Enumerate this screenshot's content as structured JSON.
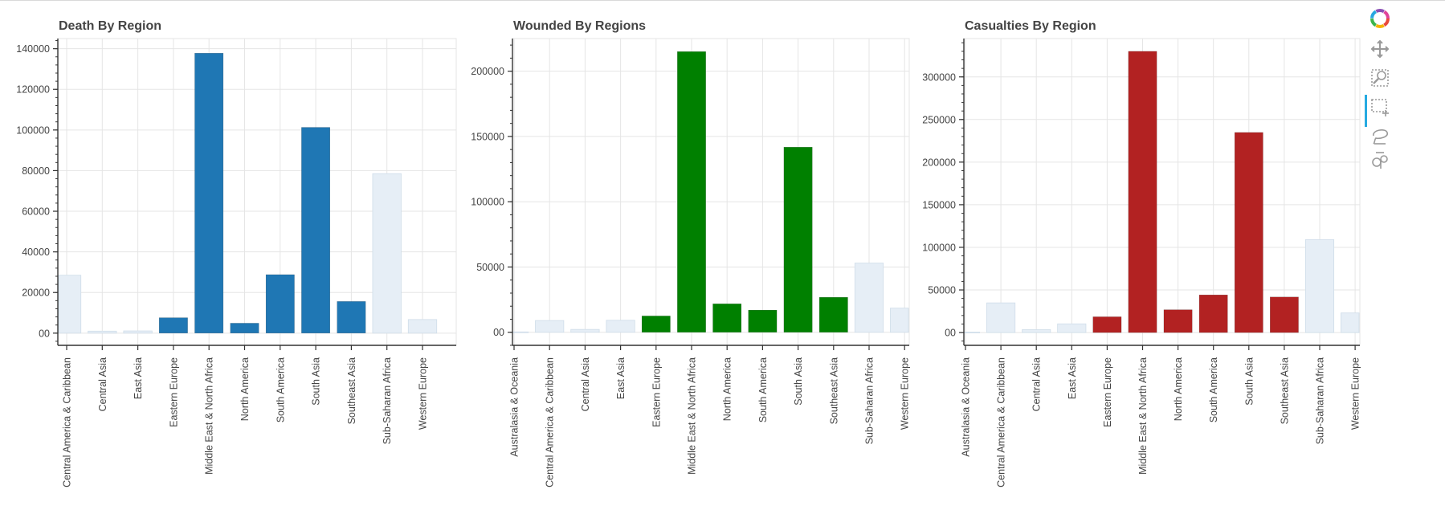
{
  "chart_data": [
    {
      "type": "bar",
      "title": "Death By Region",
      "color": "#1f77b4",
      "muted_color": "#e6eef6",
      "categories": [
        "Central America & Caribbean",
        "Central Asia",
        "East Asia",
        "Eastern Europe",
        "Middle East & North Africa",
        "North America",
        "South America",
        "South Asia",
        "Southeast Asia",
        "Sub-Saharan Africa",
        "Western Europe"
      ],
      "values": [
        28500,
        1000,
        1100,
        7600,
        137800,
        4900,
        28800,
        101300,
        15600,
        78500,
        6700
      ],
      "selected": [
        false,
        false,
        false,
        true,
        true,
        true,
        true,
        true,
        true,
        false,
        false
      ],
      "yticks": [
        0,
        20000,
        40000,
        60000,
        80000,
        100000,
        120000,
        140000
      ],
      "ytick_labels": [
        "00",
        "20000",
        "40000",
        "60000",
        "80000",
        "100000",
        "120000",
        "140000"
      ],
      "ylim": [
        -6000,
        145000
      ],
      "grid": true
    },
    {
      "type": "bar",
      "title": "Wounded By Regions",
      "color": "#008000",
      "muted_color": "#e6eef6",
      "categories": [
        "Australasia & Oceania",
        "Central America & Caribbean",
        "Central Asia",
        "East Asia",
        "Eastern Europe",
        "Middle East & North Africa",
        "North America",
        "South America",
        "South Asia",
        "Southeast Asia",
        "Sub-Saharan Africa",
        "Western Europe"
      ],
      "values": [
        300,
        9000,
        2200,
        9200,
        12500,
        215000,
        21800,
        17000,
        141800,
        26800,
        53000,
        18500
      ],
      "selected": [
        false,
        false,
        false,
        false,
        true,
        true,
        true,
        true,
        true,
        true,
        false,
        false
      ],
      "yticks": [
        0,
        50000,
        100000,
        150000,
        200000
      ],
      "ytick_labels": [
        "00",
        "50000",
        "100000",
        "150000",
        "200000"
      ],
      "ylim": [
        -10000,
        225000
      ],
      "grid": true
    },
    {
      "type": "bar",
      "title": "Casualties By Region",
      "color": "#b22222",
      "muted_color": "#e6eef6",
      "categories": [
        "Australasia & Oceania",
        "Central America & Caribbean",
        "Central Asia",
        "East Asia",
        "Eastern Europe",
        "Middle East & North Africa",
        "North America",
        "South America",
        "South Asia",
        "Southeast Asia",
        "Sub-Saharan Africa",
        "Western Europe"
      ],
      "values": [
        500,
        34800,
        3400,
        10200,
        18500,
        330000,
        26800,
        44200,
        234800,
        41700,
        109000,
        23000
      ],
      "selected": [
        false,
        false,
        false,
        false,
        true,
        true,
        true,
        true,
        true,
        true,
        false,
        false
      ],
      "yticks": [
        0,
        50000,
        100000,
        150000,
        200000,
        250000,
        300000
      ],
      "ytick_labels": [
        "00",
        "50000",
        "100000",
        "150000",
        "200000",
        "250000",
        "300000"
      ],
      "ylim": [
        -15000,
        345000
      ],
      "grid": true
    }
  ],
  "toolbar": {
    "logo_icon": "bokeh-logo-icon",
    "tools": [
      "pan-icon",
      "box-zoom-icon",
      "box-select-icon",
      "lasso-select-icon",
      "reset-icon"
    ]
  }
}
